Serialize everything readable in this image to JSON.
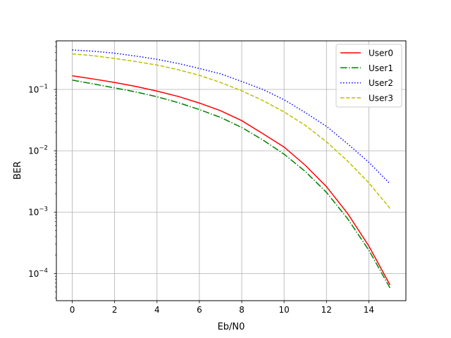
{
  "chart_data": {
    "type": "line",
    "title": "",
    "xlabel": "Eb/N0",
    "ylabel": "BER",
    "xlim": [
      -0.75,
      15.75
    ],
    "ylim": [
      3.6e-05,
      0.62
    ],
    "yscale": "log",
    "grid": true,
    "legend_position": "top-right",
    "x_ticks": [
      0,
      2,
      4,
      6,
      8,
      10,
      12,
      14
    ],
    "y_ticks": [
      {
        "value": 0.0001,
        "base": "10",
        "exp": "−4"
      },
      {
        "value": 0.001,
        "base": "10",
        "exp": "−3"
      },
      {
        "value": 0.01,
        "base": "10",
        "exp": "−2"
      },
      {
        "value": 0.1,
        "base": "10",
        "exp": "−1"
      }
    ],
    "x": [
      0,
      1,
      2,
      3,
      4,
      5,
      6,
      7,
      8,
      9,
      10,
      11,
      12,
      13,
      14,
      15
    ],
    "series": [
      {
        "name": "User0",
        "color": "#ff0000",
        "dash": "solid",
        "values": [
          0.167,
          0.148,
          0.13,
          0.112,
          0.094,
          0.077,
          0.06,
          0.045,
          0.031,
          0.019,
          0.0115,
          0.0058,
          0.0026,
          0.00095,
          0.00028,
          6.5e-05
        ]
      },
      {
        "name": "User1",
        "color": "#008000",
        "dash": "dashdot",
        "values": [
          0.142,
          0.123,
          0.106,
          0.091,
          0.076,
          0.061,
          0.047,
          0.035,
          0.024,
          0.015,
          0.0088,
          0.0046,
          0.0021,
          0.00078,
          0.00024,
          5.8e-05
        ]
      },
      {
        "name": "User2",
        "color": "#0000ff",
        "dash": "dotted",
        "values": [
          0.44,
          0.42,
          0.39,
          0.35,
          0.31,
          0.265,
          0.22,
          0.18,
          0.135,
          0.1,
          0.068,
          0.042,
          0.025,
          0.013,
          0.0065,
          0.0029
        ]
      },
      {
        "name": "User3",
        "color": "#bfbf00",
        "dash": "dashed",
        "values": [
          0.38,
          0.355,
          0.32,
          0.285,
          0.25,
          0.21,
          0.17,
          0.13,
          0.095,
          0.066,
          0.043,
          0.026,
          0.014,
          0.0068,
          0.003,
          0.00115
        ]
      }
    ]
  }
}
